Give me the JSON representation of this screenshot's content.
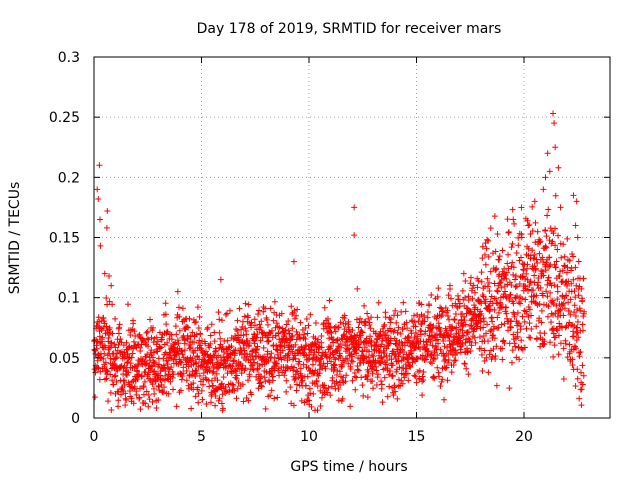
{
  "chart_data": {
    "type": "scatter",
    "title": "Day 178 of 2019, SRMTID for receiver mars",
    "xlabel": "GPS time / hours",
    "ylabel": "SRMTID / TECUs",
    "xlim": [
      0,
      24
    ],
    "ylim": [
      0,
      0.3
    ],
    "xticks": [
      0,
      5,
      10,
      15,
      20
    ],
    "xtick_labels": [
      "0",
      "5",
      "10",
      "15",
      "20"
    ],
    "yticks": [
      0,
      0.05,
      0.1,
      0.15,
      0.2,
      0.25,
      0.3
    ],
    "ytick_labels": [
      "0",
      "0.05",
      "0.1",
      "0.15",
      "0.2",
      "0.25",
      "0.3"
    ],
    "grid": true,
    "marker": "+",
    "color": "#ff0000",
    "series": [
      {
        "name": "SRMTID",
        "x_range": [
          0,
          22.8
        ],
        "trend": [
          [
            0.0,
            0.055
          ],
          [
            0.5,
            0.06
          ],
          [
            1.0,
            0.045
          ],
          [
            2.0,
            0.04
          ],
          [
            3.0,
            0.045
          ],
          [
            4.0,
            0.055
          ],
          [
            5.0,
            0.048
          ],
          [
            6.0,
            0.045
          ],
          [
            7.0,
            0.055
          ],
          [
            8.0,
            0.055
          ],
          [
            9.0,
            0.055
          ],
          [
            10.0,
            0.045
          ],
          [
            11.0,
            0.05
          ],
          [
            12.0,
            0.06
          ],
          [
            13.0,
            0.055
          ],
          [
            14.0,
            0.055
          ],
          [
            15.0,
            0.06
          ],
          [
            16.0,
            0.068
          ],
          [
            17.0,
            0.075
          ],
          [
            18.0,
            0.085
          ],
          [
            19.0,
            0.1
          ],
          [
            20.0,
            0.11
          ],
          [
            21.0,
            0.115
          ],
          [
            22.0,
            0.095
          ],
          [
            22.8,
            0.075
          ]
        ],
        "spread": 0.018,
        "outliers": [
          [
            0.15,
            0.19
          ],
          [
            0.2,
            0.182
          ],
          [
            0.25,
            0.21
          ],
          [
            0.28,
            0.165
          ],
          [
            0.3,
            0.143
          ],
          [
            0.5,
            0.12
          ],
          [
            0.6,
            0.158
          ],
          [
            0.62,
            0.172
          ],
          [
            0.7,
            0.118
          ],
          [
            0.8,
            0.11
          ],
          [
            12.1,
            0.175
          ],
          [
            12.1,
            0.152
          ],
          [
            5.9,
            0.115
          ],
          [
            9.3,
            0.13
          ],
          [
            3.9,
            0.105
          ],
          [
            21.1,
            0.22
          ],
          [
            21.2,
            0.205
          ],
          [
            21.35,
            0.253
          ],
          [
            21.4,
            0.245
          ],
          [
            21.45,
            0.225
          ],
          [
            21.6,
            0.208
          ],
          [
            21.0,
            0.2
          ],
          [
            20.9,
            0.19
          ],
          [
            21.7,
            0.175
          ],
          [
            22.3,
            0.185
          ],
          [
            22.45,
            0.18
          ],
          [
            22.4,
            0.16
          ],
          [
            22.5,
            0.15
          ],
          [
            20.5,
            0.18
          ],
          [
            21.55,
            0.14
          ],
          [
            20.2,
            0.16
          ],
          [
            19.5,
            0.165
          ],
          [
            19.9,
            0.15
          ],
          [
            5.95,
            0.012
          ],
          [
            6.0,
            0.008
          ],
          [
            1.0,
            0.02
          ],
          [
            2.8,
            0.02
          ],
          [
            10.2,
            0.02
          ],
          [
            1.5,
            0.015
          ],
          [
            8.1,
            0.018
          ]
        ]
      }
    ]
  }
}
